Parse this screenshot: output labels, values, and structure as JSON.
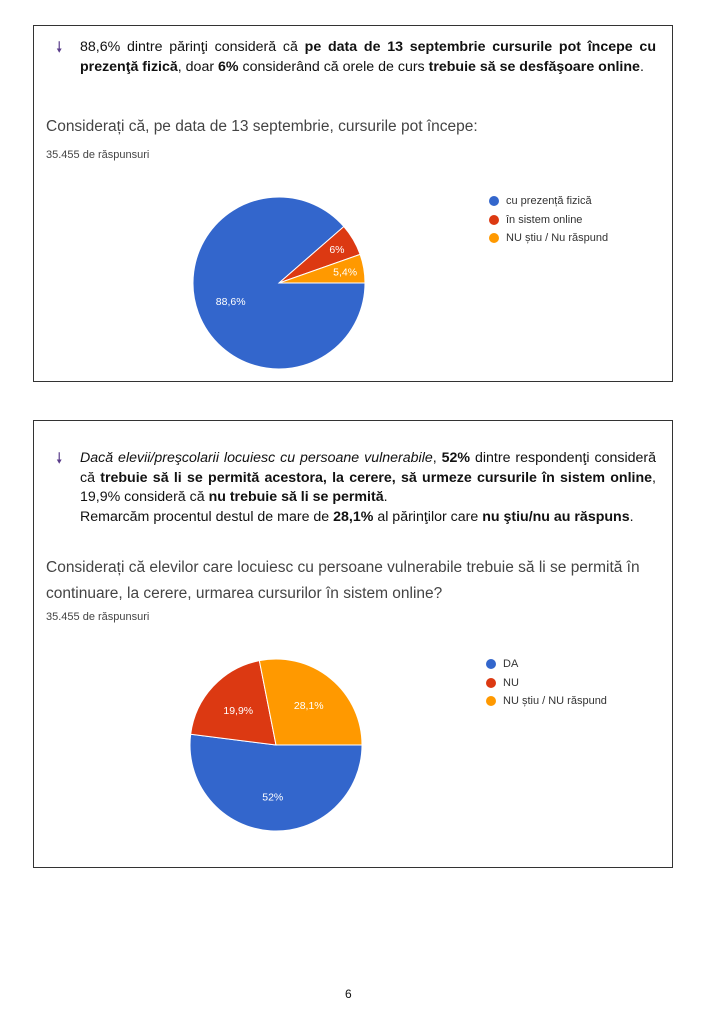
{
  "sections": [
    {
      "bullet_icon": "down-arrow-bullet-icon",
      "text": [
        {
          "t": "88,6% dintre părinţi consideră că ",
          "b": false
        },
        {
          "t": "pe data de 13 septembrie cursurile pot începe cu prezenţă fizică",
          "b": true
        },
        {
          "t": ", doar ",
          "b": false
        },
        {
          "t": "6%",
          "b": true
        },
        {
          "t": " considerând că orele de curs ",
          "b": false
        },
        {
          "t": "trebuie să se desfăşoare online",
          "b": true
        },
        {
          "t": ".",
          "b": false
        }
      ],
      "question": "Considerați că, pe data de 13 septembrie, cursurile pot începe:",
      "responses": "35.455 de răspunsuri"
    },
    {
      "bullet_icon": "down-arrow-bullet-icon",
      "text": [
        {
          "t": "Dacă elevii/preşcolarii locuiesc cu persoane vulnerabile",
          "b": false,
          "i": true
        },
        {
          "t": ", ",
          "b": false
        },
        {
          "t": "52%",
          "b": true
        },
        {
          "t": " dintre respondenţi consideră că ",
          "b": false
        },
        {
          "t": "trebuie să li se permită acestora, la cerere, să urmeze cursurile în sistem online",
          "b": true
        },
        {
          "t": ", 19,9% consideră că ",
          "b": false
        },
        {
          "t": "nu trebuie să li se permită",
          "b": true
        },
        {
          "t": ".",
          "b": false
        },
        {
          "t": "\nRemarcăm procentul destul de mare de ",
          "b": false
        },
        {
          "t": "28,1%",
          "b": true
        },
        {
          "t": " al părinţilor care ",
          "b": false
        },
        {
          "t": "nu ştiu/nu au răspuns",
          "b": true
        },
        {
          "t": ".",
          "b": false
        }
      ],
      "question": "Considerați că elevilor care locuiesc cu persoane vulnerabile trebuie să li se permită în continuare, la cerere, urmarea cursurilor în sistem online?",
      "responses": "35.455 de răspunsuri"
    }
  ],
  "chart_data": [
    {
      "type": "pie",
      "title": "Considerați că, pe data de 13 septembrie, cursurile pot începe:",
      "categories": [
        "cu prezență fizică",
        "în sistem online",
        "NU știu / Nu răspund"
      ],
      "values": [
        88.6,
        6,
        5.4
      ],
      "labels": [
        "88,6%",
        "6%",
        "5,4%"
      ],
      "colors": [
        "#3366cc",
        "#dc3912",
        "#ff9900"
      ],
      "legend": "right"
    },
    {
      "type": "pie",
      "title": "Considerați că elevilor care locuiesc cu persoane vulnerabile trebuie să li se permită în continuare, la cerere, urmarea cursurilor în sistem online?",
      "categories": [
        "DA",
        "NU",
        "NU știu / NU răspund"
      ],
      "values": [
        52,
        19.9,
        28.1
      ],
      "labels": [
        "52%",
        "19,9%",
        "28,1%"
      ],
      "colors": [
        "#3366cc",
        "#dc3912",
        "#ff9900"
      ],
      "legend": "right"
    }
  ],
  "page_number": "6"
}
